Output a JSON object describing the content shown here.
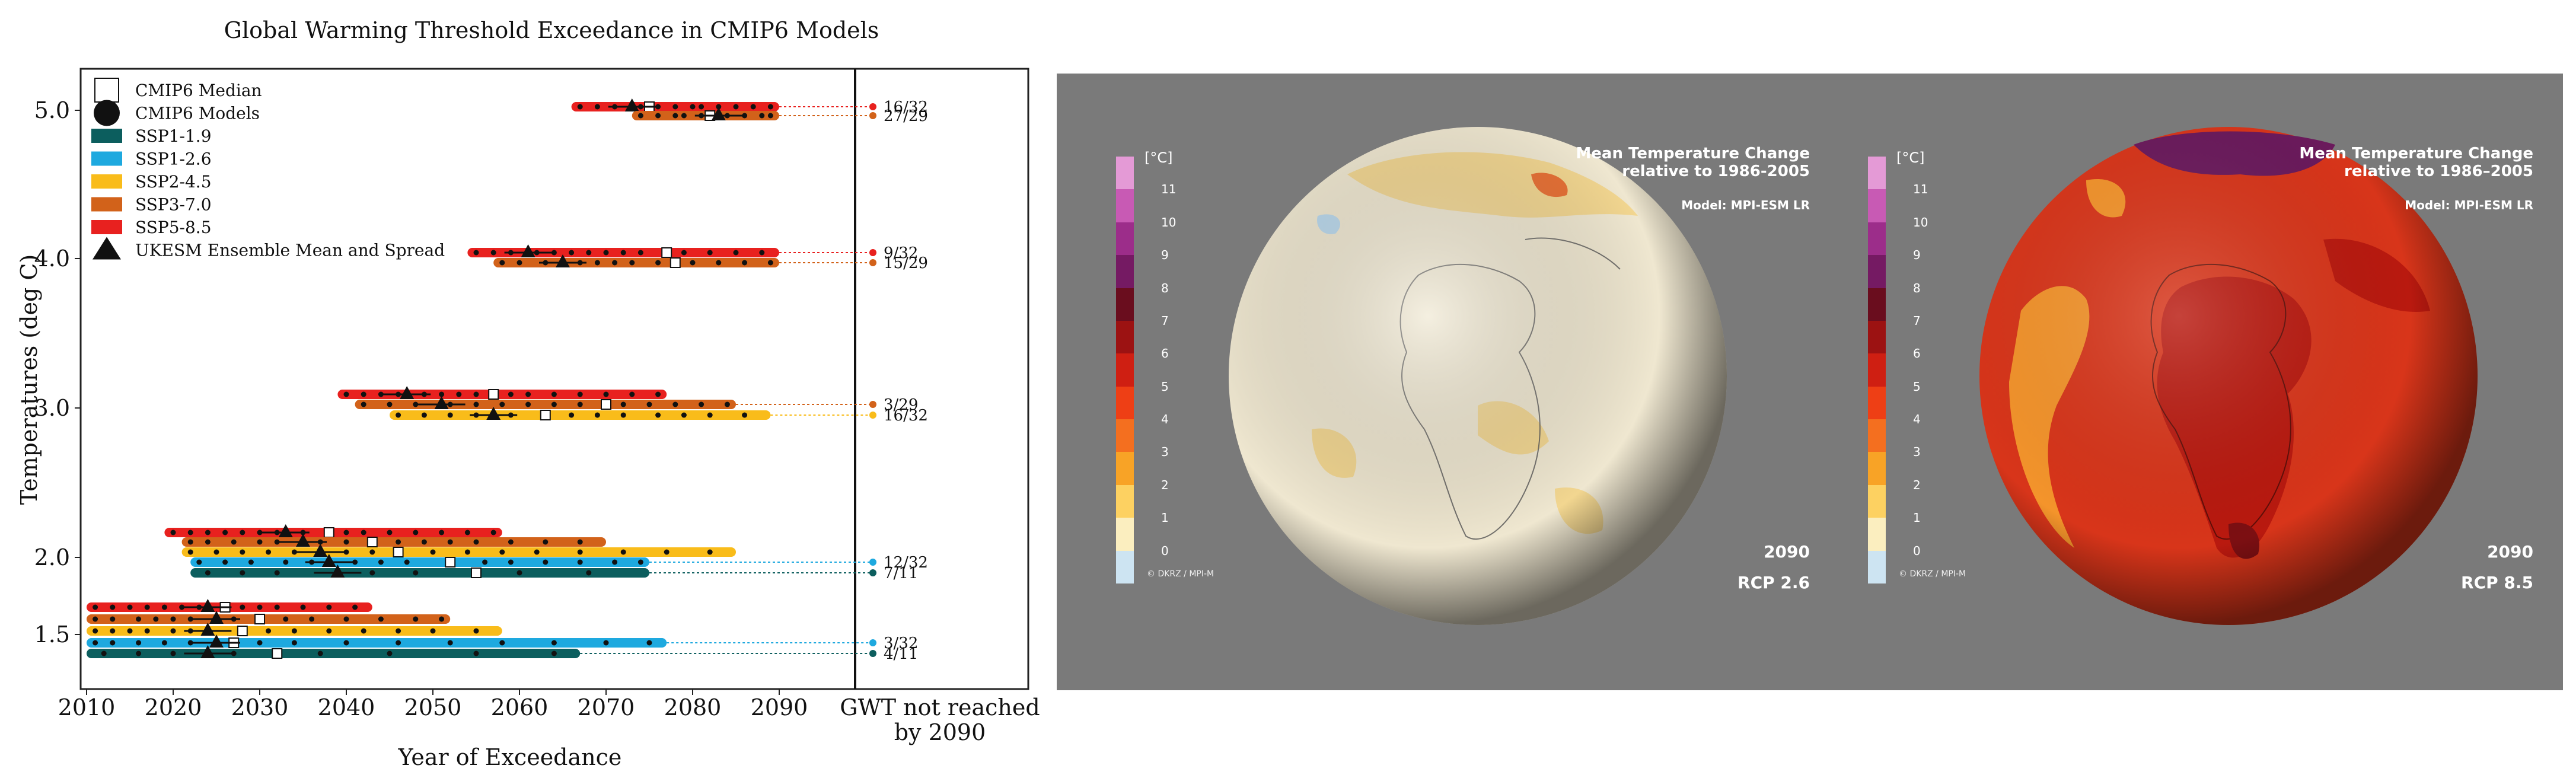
{
  "chart_data": {
    "type": "scatter",
    "title": "Global Warming Threshold Exceedance in CMIP6 Models",
    "xlabel": "Year of Exceedance",
    "ylabel": "Temperatures (deg C)",
    "xlim": [
      2010,
      2110
    ],
    "x_ticks": [
      "2010",
      "2020",
      "2030",
      "2040",
      "2050",
      "2060",
      "2070",
      "2080",
      "2090"
    ],
    "y_ticks": [
      "1.5",
      "2.0",
      "3.0",
      "4.0",
      "5.0"
    ],
    "not_reached_label_line1": "GWT not reached",
    "not_reached_label_line2": "by 2090",
    "legend": [
      {
        "label": "CMIP6 Median",
        "marker": "square-outline"
      },
      {
        "label": "CMIP6 Models",
        "marker": "circle"
      },
      {
        "label": "SSP1-1.9",
        "color": "#0c5e5e"
      },
      {
        "label": "SSP1-2.6",
        "color": "#1ea9df"
      },
      {
        "label": "SSP2-4.5",
        "color": "#f9bc1a"
      },
      {
        "label": "SSP3-7.0",
        "color": "#d2621a"
      },
      {
        "label": "SSP5-8.5",
        "color": "#e8211f"
      },
      {
        "label": "UKESM Ensemble Mean and Spread",
        "marker": "triangle"
      }
    ],
    "rows": [
      {
        "threshold": "5.0",
        "scenario": "SSP5-8.5",
        "color": "#e8211f",
        "start": 2066,
        "end": 2090,
        "median": 2075,
        "ukesm": 2073,
        "fraction": "16/32",
        "models": [
          2067,
          2069,
          2071,
          2074,
          2076,
          2078,
          2080,
          2081,
          2083,
          2085,
          2087,
          2089
        ]
      },
      {
        "threshold": "5.0",
        "scenario": "SSP3-7.0",
        "color": "#d2621a",
        "start": 2073,
        "end": 2090,
        "median": 2082,
        "ukesm": 2083,
        "fraction": "27/29",
        "models": [
          2074,
          2076,
          2078,
          2079,
          2081,
          2084,
          2086,
          2088,
          2089
        ]
      },
      {
        "threshold": "4.0",
        "scenario": "SSP5-8.5",
        "color": "#e8211f",
        "start": 2054,
        "end": 2090,
        "median": 2077,
        "ukesm": 2061,
        "fraction": "9/32",
        "models": [
          2055,
          2057,
          2059,
          2062,
          2064,
          2066,
          2068,
          2070,
          2072,
          2074,
          2079,
          2082,
          2085,
          2088
        ]
      },
      {
        "threshold": "4.0",
        "scenario": "SSP3-7.0",
        "color": "#d2621a",
        "start": 2057,
        "end": 2090,
        "median": 2078,
        "ukesm": 2065,
        "fraction": "15/29",
        "models": [
          2058,
          2060,
          2063,
          2067,
          2069,
          2071,
          2073,
          2076,
          2080,
          2083,
          2086,
          2089
        ]
      },
      {
        "threshold": "3.0",
        "scenario": "SSP5-8.5",
        "color": "#e8211f",
        "start": 2039,
        "end": 2077,
        "median": 2057,
        "ukesm": 2047,
        "fraction": "",
        "models": [
          2040,
          2042,
          2044,
          2046,
          2049,
          2051,
          2053,
          2055,
          2059,
          2061,
          2064,
          2067,
          2070,
          2073,
          2076
        ]
      },
      {
        "threshold": "3.0",
        "scenario": "SSP3-7.0",
        "color": "#d2621a",
        "start": 2041,
        "end": 2085,
        "median": 2070,
        "ukesm": 2051,
        "fraction": "3/29",
        "models": [
          2042,
          2045,
          2048,
          2052,
          2055,
          2058,
          2061,
          2064,
          2067,
          2072,
          2075,
          2078,
          2081,
          2084
        ]
      },
      {
        "threshold": "3.0",
        "scenario": "SSP2-4.5",
        "color": "#f9bc1a",
        "start": 2045,
        "end": 2089,
        "median": 2063,
        "ukesm": 2057,
        "fraction": "16/32",
        "models": [
          2046,
          2049,
          2052,
          2055,
          2059,
          2066,
          2069,
          2072,
          2076,
          2079,
          2082,
          2086
        ]
      },
      {
        "threshold": "2.0",
        "scenario": "SSP5-8.5",
        "color": "#e8211f",
        "start": 2019,
        "end": 2058,
        "median": 2038,
        "ukesm": 2033,
        "fraction": "",
        "models": [
          2020,
          2022,
          2024,
          2026,
          2028,
          2030,
          2032,
          2035,
          2040,
          2042,
          2045,
          2048,
          2051,
          2054,
          2057
        ]
      },
      {
        "threshold": "2.0",
        "scenario": "SSP3-7.0",
        "color": "#d2621a",
        "start": 2021,
        "end": 2070,
        "median": 2043,
        "ukesm": 2035,
        "fraction": "",
        "models": [
          2022,
          2024,
          2027,
          2030,
          2032,
          2037,
          2040,
          2046,
          2049,
          2052,
          2055,
          2059,
          2063,
          2067
        ]
      },
      {
        "threshold": "2.0",
        "scenario": "SSP2-4.5",
        "color": "#f9bc1a",
        "start": 2021,
        "end": 2085,
        "median": 2046,
        "ukesm": 2037,
        "fraction": "",
        "models": [
          2022,
          2025,
          2028,
          2031,
          2034,
          2040,
          2043,
          2050,
          2054,
          2058,
          2062,
          2067,
          2072,
          2077,
          2082
        ]
      },
      {
        "threshold": "2.0",
        "scenario": "SSP1-2.6",
        "color": "#1ea9df",
        "start": 2022,
        "end": 2075,
        "median": 2052,
        "ukesm": 2038,
        "fraction": "12/32",
        "models": [
          2023,
          2026,
          2029,
          2033,
          2036,
          2041,
          2044,
          2047,
          2056,
          2059,
          2063,
          2067,
          2071,
          2074
        ]
      },
      {
        "threshold": "2.0",
        "scenario": "SSP1-1.9",
        "color": "#0c5e5e",
        "start": 2022,
        "end": 2075,
        "median": 2055,
        "ukesm": 2039,
        "fraction": "7/11",
        "models": [
          2024,
          2028,
          2032,
          2043,
          2048,
          2060,
          2068
        ]
      },
      {
        "threshold": "1.5",
        "scenario": "SSP5-8.5",
        "color": "#e8211f",
        "start": 2010,
        "end": 2043,
        "median": 2026,
        "ukesm": 2024,
        "fraction": "",
        "models": [
          2011,
          2013,
          2015,
          2017,
          2019,
          2021,
          2023,
          2028,
          2030,
          2032,
          2035,
          2038,
          2041
        ]
      },
      {
        "threshold": "1.5",
        "scenario": "SSP3-7.0",
        "color": "#d2621a",
        "start": 2010,
        "end": 2052,
        "median": 2030,
        "ukesm": 2025,
        "fraction": "",
        "models": [
          2011,
          2013,
          2016,
          2018,
          2020,
          2022,
          2027,
          2033,
          2036,
          2040,
          2044,
          2048,
          2051
        ]
      },
      {
        "threshold": "1.5",
        "scenario": "SSP2-4.5",
        "color": "#f9bc1a",
        "start": 2010,
        "end": 2058,
        "median": 2028,
        "ukesm": 2024,
        "fraction": "",
        "models": [
          2011,
          2013,
          2015,
          2017,
          2020,
          2022,
          2031,
          2034,
          2038,
          2042,
          2046,
          2050,
          2055
        ]
      },
      {
        "threshold": "1.5",
        "scenario": "SSP1-2.6",
        "color": "#1ea9df",
        "start": 2010,
        "end": 2077,
        "median": 2027,
        "ukesm": 2025,
        "fraction": "3/32",
        "models": [
          2011,
          2013,
          2016,
          2019,
          2022,
          2030,
          2034,
          2040,
          2046,
          2052,
          2058,
          2064,
          2070,
          2075
        ]
      },
      {
        "threshold": "1.5",
        "scenario": "SSP1-1.9",
        "color": "#0c5e5e",
        "start": 2010,
        "end": 2067,
        "median": 2032,
        "ukesm": 2024,
        "fraction": "4/11",
        "models": [
          2012,
          2016,
          2020,
          2027,
          2037,
          2045,
          2055,
          2064
        ]
      }
    ]
  },
  "maps": [
    {
      "title_line1": "Mean Temperature Change",
      "title_line2": "relative to 1986-2005",
      "model": "Model: MPI-ESM LR",
      "year": "2090",
      "scenario": "RCP 2.6",
      "credit": "© DKRZ / MPI-M",
      "globe_color": "#efe7d0"
    },
    {
      "title_line1": "Mean Temperature Change",
      "title_line2": "relative to 1986–2005",
      "model": "Model: MPI-ESM LR",
      "year": "2090",
      "scenario": "RCP 8.5",
      "credit": "© DKRZ / MPI-M",
      "globe_color": "#d8351a"
    }
  ],
  "colorbar": {
    "unit": "[°C]",
    "labels": [
      "11",
      "10",
      "9",
      "8",
      "7",
      "6",
      "5",
      "4",
      "3",
      "2",
      "1",
      "0"
    ],
    "colors": [
      "#e49ad6",
      "#c85ab4",
      "#9c2d8a",
      "#751a63",
      "#6a0d1e",
      "#9c1212",
      "#cf1f12",
      "#ee3f15",
      "#f46f1f",
      "#f8a326",
      "#fdd161",
      "#fbeebf",
      "#cde4f2"
    ]
  }
}
